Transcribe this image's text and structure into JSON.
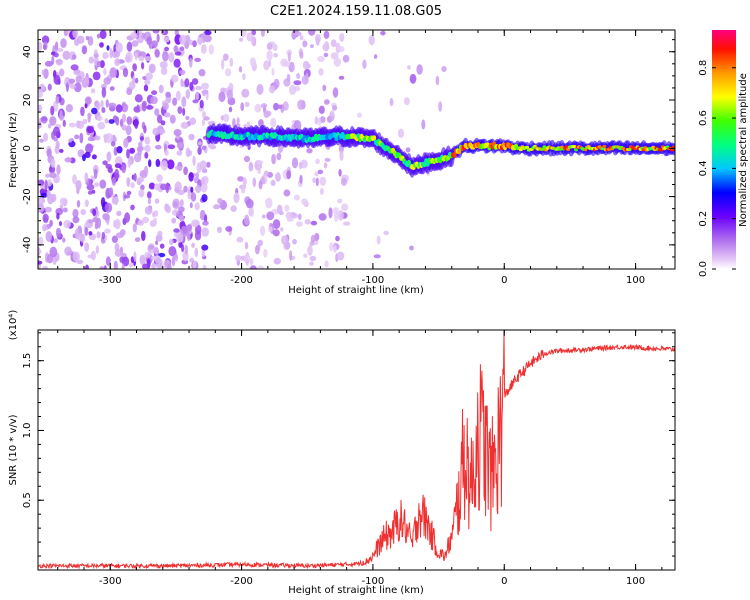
{
  "title": "C2E1.2024.159.11.08.G05",
  "chart_data": [
    {
      "type": "heatmap",
      "xlabel": "Height of straight line (km)",
      "ylabel": "Frequency (Hz)",
      "xlim": [
        -355,
        130
      ],
      "ylim": [
        -50,
        49
      ],
      "xticks": [
        "-300",
        "-200",
        "-100",
        "0",
        "100"
      ],
      "xtick_values": [
        -300,
        -200,
        -100,
        0,
        100
      ],
      "yticks": [
        "-40",
        "-20",
        "0",
        "20",
        "40"
      ],
      "ytick_values": [
        -40,
        -20,
        0,
        20,
        40
      ],
      "colorbar": {
        "label": "Normalized spectral amplitude",
        "range": [
          0,
          0.95
        ],
        "ticks": [
          "0.0",
          "0.2",
          "0.4",
          "0.6",
          "0.8"
        ],
        "tick_values": [
          0,
          0.2,
          0.4,
          0.6,
          0.8
        ],
        "colors": [
          "#ffffff",
          "#d8a8f0",
          "#7b00e6",
          "#0000ff",
          "#00e0ff",
          "#00ff00",
          "#ffff00",
          "#ff8800",
          "#ff0000",
          "#ff0080"
        ]
      },
      "ridge": {
        "x": [
          -225,
          -200,
          -175,
          -150,
          -125,
          -100,
          -90,
          -80,
          -70,
          -60,
          -50,
          -40,
          -30,
          -20,
          -10,
          0,
          10,
          30,
          60,
          90,
          130
        ],
        "y": [
          6,
          5,
          5,
          4,
          5,
          4,
          0,
          -3,
          -8,
          -6,
          -5,
          -3,
          1,
          1,
          1,
          1,
          0,
          0,
          0,
          0,
          0
        ]
      },
      "grid": false
    },
    {
      "type": "line",
      "xlabel": "Height of straight line (km)",
      "ylabel": "SNR (10 * v/v)",
      "y_multiplier": "(x10⁴)",
      "xlim": [
        -355,
        130
      ],
      "ylim": [
        0,
        1.72
      ],
      "xticks": [
        "-300",
        "-200",
        "-100",
        "0",
        "100"
      ],
      "xtick_values": [
        -300,
        -200,
        -100,
        0,
        100
      ],
      "yticks": [
        "0.5",
        "1.0",
        "1.5"
      ],
      "ytick_values": [
        0.5,
        1.0,
        1.5
      ],
      "color": "#f03030",
      "series": [
        {
          "x": [
            -355,
            -300,
            -250,
            -200,
            -150,
            -120,
            -105,
            -100,
            -95,
            -90,
            -85,
            -80,
            -75,
            -70,
            -65,
            -60,
            -55,
            -50,
            -45,
            -40,
            -35,
            -30,
            -25,
            -20,
            -15,
            -10,
            -5,
            0,
            10,
            20,
            30,
            40,
            60,
            90,
            110,
            130
          ],
          "y": [
            0.03,
            0.03,
            0.03,
            0.04,
            0.03,
            0.04,
            0.05,
            0.08,
            0.15,
            0.2,
            0.22,
            0.3,
            0.25,
            0.15,
            0.35,
            0.3,
            0.2,
            0.1,
            0.08,
            0.2,
            0.5,
            0.85,
            0.6,
            1.0,
            0.9,
            0.65,
            0.85,
            1.25,
            1.38,
            1.48,
            1.55,
            1.57,
            1.58,
            1.6,
            1.59,
            1.58
          ]
        }
      ],
      "grid": false
    }
  ]
}
